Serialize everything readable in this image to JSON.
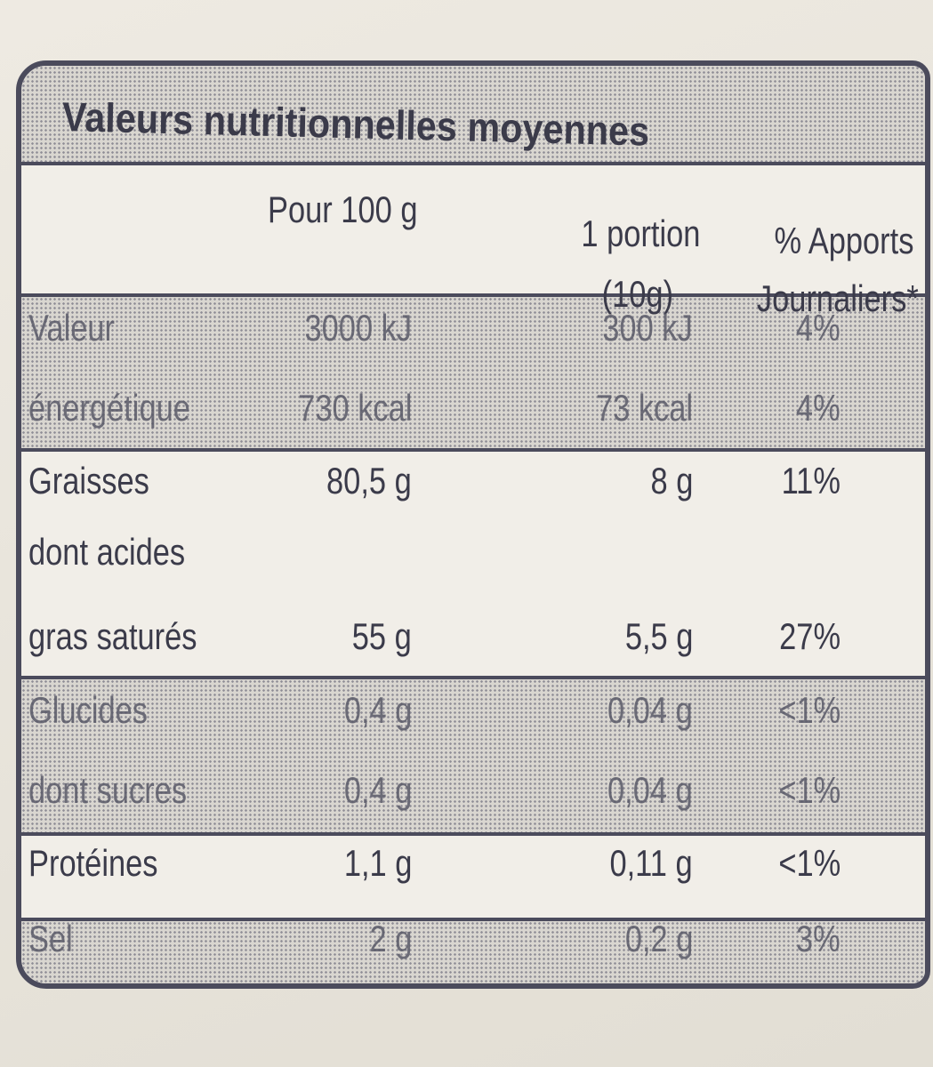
{
  "title": "Valeurs nutritionnelles moyennes",
  "header": {
    "per_100g": "Pour 100 g",
    "portion": [
      "1 portion",
      "(10g)"
    ],
    "daily": [
      "% Apports",
      "Journaliers*"
    ]
  },
  "rows": [
    {
      "label": [
        "Valeur",
        "énergétique"
      ],
      "per_100g": [
        "3000 kJ",
        "730 kcal"
      ],
      "portion": [
        "300 kJ",
        "73 kcal"
      ],
      "daily": [
        "4%",
        "4%"
      ]
    },
    {
      "label": [
        "Graisses"
      ],
      "per_100g": [
        "80,5 g"
      ],
      "portion": [
        "8 g"
      ],
      "daily": [
        "11%"
      ]
    },
    {
      "label": [
        "dont acides",
        "gras saturés"
      ],
      "per_100g": [
        "55 g"
      ],
      "portion": [
        "5,5 g"
      ],
      "daily": [
        "27%"
      ]
    },
    {
      "label": [
        "Glucides"
      ],
      "per_100g": [
        "0,4 g"
      ],
      "portion": [
        "0,04 g"
      ],
      "daily": [
        "<1%"
      ]
    },
    {
      "label": [
        "dont sucres"
      ],
      "per_100g": [
        "0,4 g"
      ],
      "portion": [
        "0,04 g"
      ],
      "daily": [
        "<1%"
      ]
    },
    {
      "label": [
        "Protéines"
      ],
      "per_100g": [
        "1,1 g"
      ],
      "portion": [
        "0,11 g"
      ],
      "daily": [
        "<1%"
      ]
    },
    {
      "label": [
        "Sel"
      ],
      "per_100g": [
        "2 g"
      ],
      "portion": [
        "0,2 g"
      ],
      "daily": [
        "3%"
      ]
    }
  ]
}
